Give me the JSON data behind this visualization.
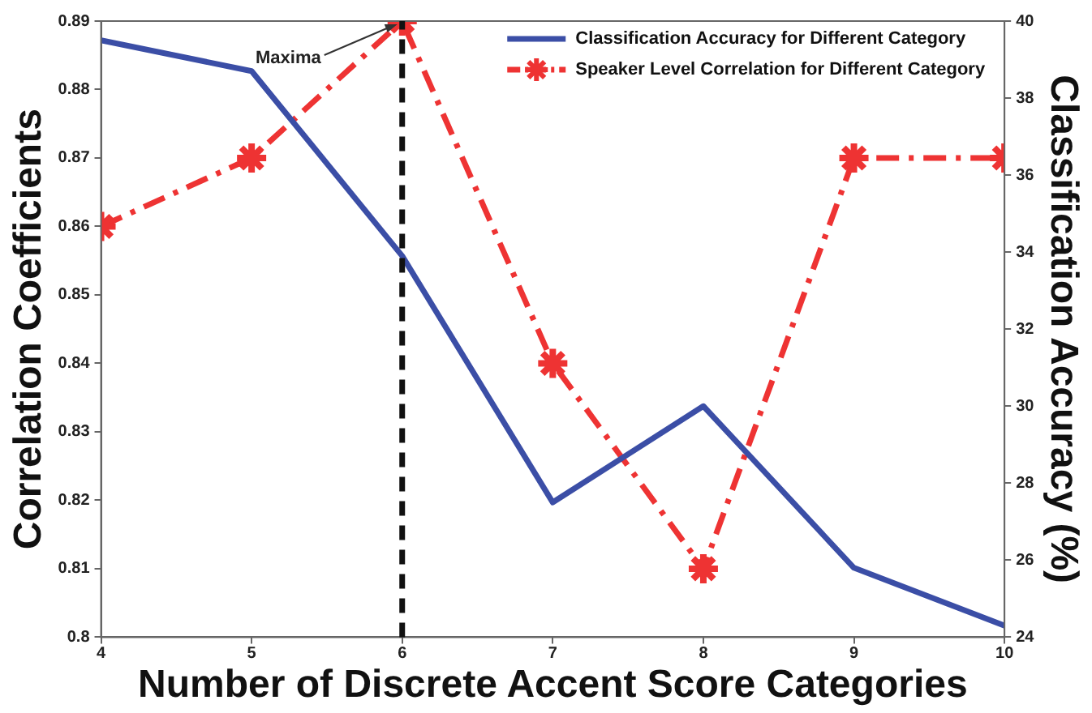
{
  "chart_data": {
    "type": "line",
    "xlabel": "Number of Discrete Accent Score Categories",
    "ylabel": "Correlation Coefficients",
    "y2label": "Classification Accuracy (%)",
    "x": [
      4,
      5,
      6,
      7,
      8,
      9,
      10
    ],
    "xlim": [
      4,
      10
    ],
    "xticks": [
      4,
      5,
      6,
      7,
      8,
      9,
      10
    ],
    "ylim": [
      0.8,
      0.89
    ],
    "yticks": [
      0.8,
      0.81,
      0.82,
      0.83,
      0.84,
      0.85,
      0.86,
      0.87,
      0.88,
      0.89
    ],
    "y2lim": [
      24,
      40
    ],
    "y2ticks": [
      24,
      26,
      28,
      30,
      32,
      34,
      36,
      38,
      40
    ],
    "series": [
      {
        "name": "Classification Accuracy for Different Category",
        "color": "#3b4ea6",
        "axis": "y2",
        "marker": "none",
        "line_style": "solid",
        "values": [
          39.5,
          38.7,
          33.9,
          27.5,
          30,
          25.8,
          24.3
        ]
      },
      {
        "name": "Speaker Level Correlation for Different Category",
        "color": "#ee3333",
        "marker": "cross",
        "line_style": "dashed",
        "values": [
          0.86,
          0.87,
          0.89,
          0.84,
          0.81,
          0.87,
          0.87
        ]
      }
    ],
    "ref_lines": [
      {
        "axis": "x",
        "value": 6,
        "color": "#111111",
        "line_style": "dashed"
      }
    ],
    "annotations": [
      {
        "text": "Maxima",
        "x": 6,
        "y": 0.89
      }
    ],
    "grid": false,
    "legend": "top right"
  }
}
